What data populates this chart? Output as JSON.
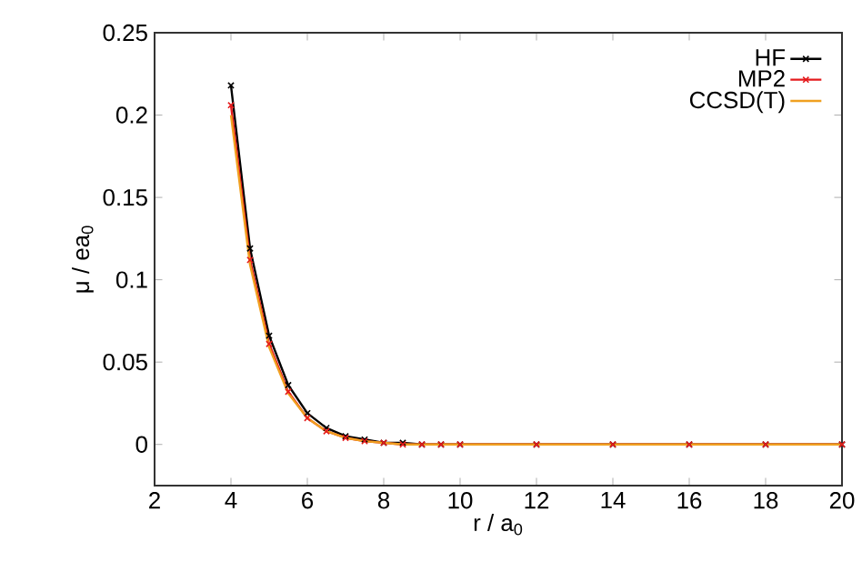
{
  "chart_data": {
    "type": "line",
    "xlabel": "r / a$_{0}$",
    "ylabel": "μ / ea$_{0}$",
    "x": [
      4,
      4.5,
      5,
      5.5,
      6,
      6.5,
      7,
      7.5,
      8,
      8.5,
      9,
      9.5,
      10,
      12,
      14,
      16,
      18,
      20
    ],
    "series": [
      {
        "name": "HF",
        "color": "#000000",
        "marker": "cross",
        "values": [
          0.218,
          0.119,
          0.066,
          0.036,
          0.019,
          0.01,
          0.005,
          0.003,
          0.001,
          0.001,
          0.0,
          0.0,
          0.0,
          0.0,
          0.0,
          0.0,
          0.0,
          0.0
        ]
      },
      {
        "name": "MP2",
        "color": "#e41a1c",
        "marker": "cross",
        "values": [
          0.206,
          0.112,
          0.061,
          0.032,
          0.016,
          0.008,
          0.004,
          0.002,
          0.001,
          0.0,
          0.0,
          0.0,
          0.0,
          0.0,
          0.0,
          0.0,
          0.0,
          0.0
        ]
      },
      {
        "name": "CCSD(T)",
        "color": "#f0a020",
        "marker": "none",
        "values": [
          0.2,
          0.109,
          0.059,
          0.031,
          0.016,
          0.008,
          0.004,
          0.002,
          0.001,
          0.0,
          0.0,
          0.0,
          0.0,
          0.0,
          0.0,
          0.0,
          0.0,
          0.0
        ]
      }
    ],
    "xlim": [
      2,
      20
    ],
    "ylim": [
      -0.025,
      0.25
    ],
    "xticks": [
      2,
      4,
      6,
      8,
      10,
      12,
      14,
      16,
      18,
      20
    ],
    "yticks": [
      0,
      0.05,
      0.1,
      0.15,
      0.2,
      0.25
    ],
    "grid": false,
    "legend": "top right",
    "line_style": "solid"
  }
}
